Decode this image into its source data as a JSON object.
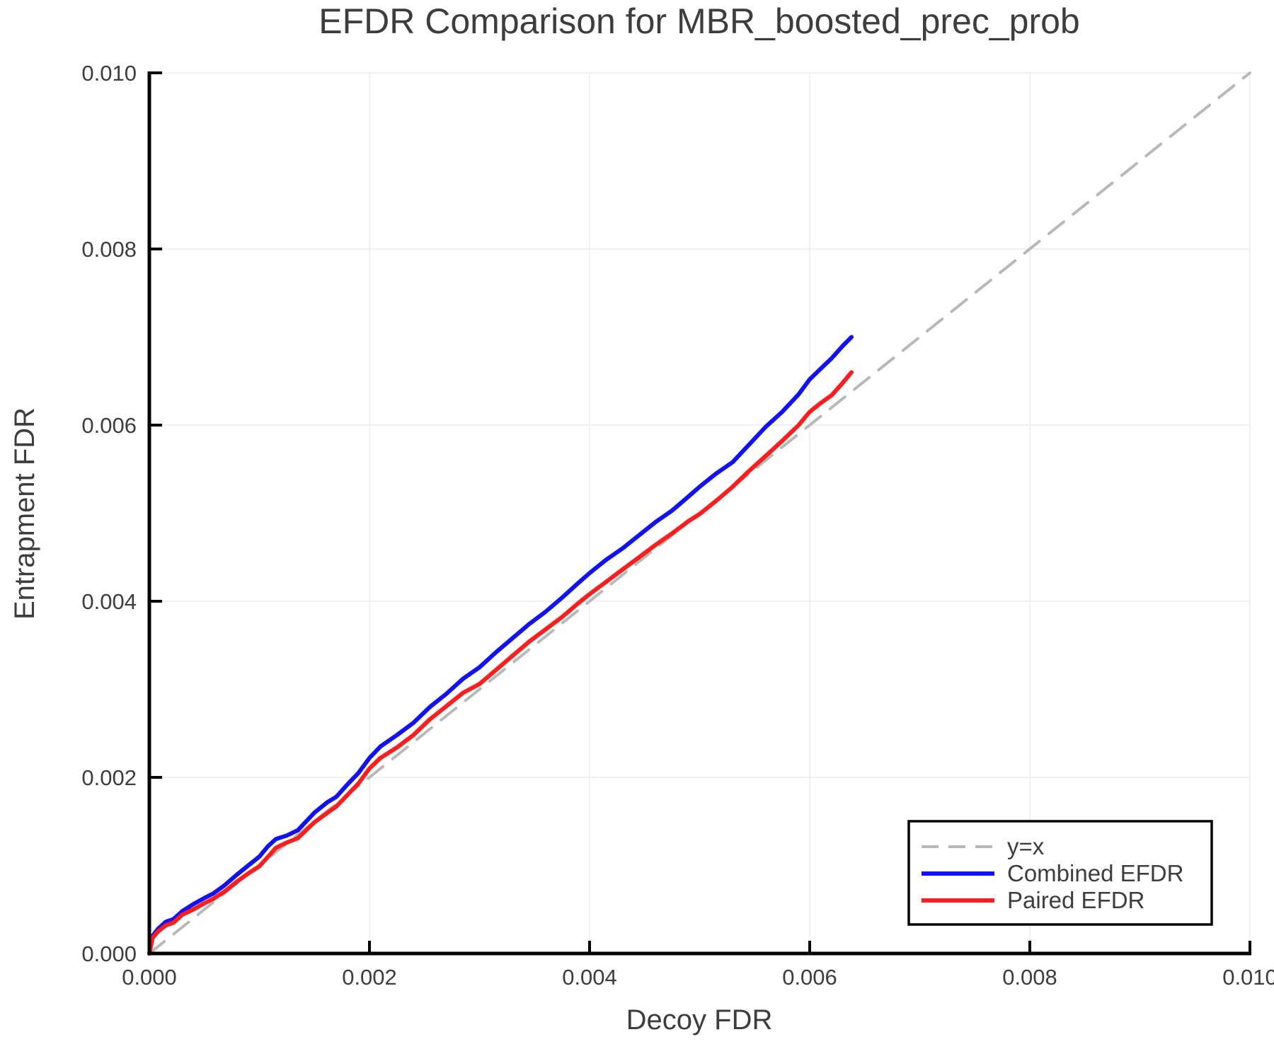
{
  "chart_data": {
    "type": "line",
    "title": "EFDR Comparison for MBR_boosted_prec_prob",
    "xlabel": "Decoy FDR",
    "ylabel": "Entrapment FDR",
    "xlim": [
      0.0,
      0.01
    ],
    "ylim": [
      0.0,
      0.01
    ],
    "grid": true,
    "legend_position": "bottom-right",
    "x_ticks": {
      "values": [
        0.0,
        0.002,
        0.004,
        0.006,
        0.008,
        0.01
      ],
      "labels": [
        "0.000",
        "0.002",
        "0.004",
        "0.006",
        "0.008",
        "0.010"
      ]
    },
    "y_ticks": {
      "values": [
        0.0,
        0.002,
        0.004,
        0.006,
        0.008,
        0.01
      ],
      "labels": [
        "0.000",
        "0.002",
        "0.004",
        "0.006",
        "0.008",
        "0.010"
      ]
    },
    "series": [
      {
        "name": "y=x",
        "style": "dashed",
        "color": "#b8b8b8",
        "points": [
          [
            0.0,
            0.0
          ],
          [
            0.01,
            0.01
          ]
        ]
      },
      {
        "name": "Combined EFDR",
        "style": "solid",
        "color": "#1212ee",
        "points": [
          [
            0.0,
            0.0
          ],
          [
            3e-05,
            0.0002
          ],
          [
            8e-05,
            0.00028
          ],
          [
            0.00015,
            0.00036
          ],
          [
            0.00022,
            0.00039
          ],
          [
            0.0003,
            0.00048
          ],
          [
            0.0004,
            0.00056
          ],
          [
            0.0005,
            0.00063
          ],
          [
            0.00058,
            0.00068
          ],
          [
            0.00068,
            0.00077
          ],
          [
            0.0008,
            0.0009
          ],
          [
            0.0009,
            0.001
          ],
          [
            0.001,
            0.0011
          ],
          [
            0.00108,
            0.00122
          ],
          [
            0.00115,
            0.0013
          ],
          [
            0.00125,
            0.00134
          ],
          [
            0.00135,
            0.0014
          ],
          [
            0.0015,
            0.0016
          ],
          [
            0.00162,
            0.00172
          ],
          [
            0.0017,
            0.00178
          ],
          [
            0.0018,
            0.00192
          ],
          [
            0.0019,
            0.00205
          ],
          [
            0.002,
            0.00222
          ],
          [
            0.0021,
            0.00235
          ],
          [
            0.00225,
            0.00248
          ],
          [
            0.0024,
            0.00262
          ],
          [
            0.00255,
            0.0028
          ],
          [
            0.0027,
            0.00295
          ],
          [
            0.00285,
            0.00312
          ],
          [
            0.003,
            0.00325
          ],
          [
            0.00315,
            0.00342
          ],
          [
            0.0033,
            0.00358
          ],
          [
            0.00345,
            0.00374
          ],
          [
            0.0036,
            0.00388
          ],
          [
            0.00375,
            0.00404
          ],
          [
            0.0039,
            0.00421
          ],
          [
            0.004,
            0.00432
          ],
          [
            0.00415,
            0.00447
          ],
          [
            0.0043,
            0.0046
          ],
          [
            0.00445,
            0.00475
          ],
          [
            0.0046,
            0.0049
          ],
          [
            0.00475,
            0.00503
          ],
          [
            0.0049,
            0.00519
          ],
          [
            0.005,
            0.0053
          ],
          [
            0.00515,
            0.00545
          ],
          [
            0.0053,
            0.00558
          ],
          [
            0.00545,
            0.00578
          ],
          [
            0.0056,
            0.00598
          ],
          [
            0.00575,
            0.00615
          ],
          [
            0.0059,
            0.00635
          ],
          [
            0.006,
            0.00652
          ],
          [
            0.0061,
            0.00664
          ],
          [
            0.0062,
            0.00676
          ],
          [
            0.0063,
            0.0069
          ],
          [
            0.00638,
            0.007
          ]
        ]
      },
      {
        "name": "Paired EFDR",
        "style": "solid",
        "color": "#fa1e1e",
        "points": [
          [
            0.0,
            0.0
          ],
          [
            3e-05,
            0.00018
          ],
          [
            8e-05,
            0.00025
          ],
          [
            0.00015,
            0.00032
          ],
          [
            0.00022,
            0.00035
          ],
          [
            0.0003,
            0.00044
          ],
          [
            0.0004,
            0.0005
          ],
          [
            0.0005,
            0.00057
          ],
          [
            0.00058,
            0.00062
          ],
          [
            0.00068,
            0.0007
          ],
          [
            0.0008,
            0.00082
          ],
          [
            0.0009,
            0.00091
          ],
          [
            0.001,
            0.00099
          ],
          [
            0.00108,
            0.0011
          ],
          [
            0.00115,
            0.0012
          ],
          [
            0.00125,
            0.00126
          ],
          [
            0.00135,
            0.00131
          ],
          [
            0.0015,
            0.00149
          ],
          [
            0.00162,
            0.0016
          ],
          [
            0.0017,
            0.00167
          ],
          [
            0.0018,
            0.0018
          ],
          [
            0.0019,
            0.00193
          ],
          [
            0.002,
            0.0021
          ],
          [
            0.0021,
            0.00222
          ],
          [
            0.00225,
            0.00234
          ],
          [
            0.0024,
            0.00248
          ],
          [
            0.00255,
            0.00266
          ],
          [
            0.0027,
            0.00281
          ],
          [
            0.00285,
            0.00296
          ],
          [
            0.003,
            0.00306
          ],
          [
            0.00315,
            0.00322
          ],
          [
            0.0033,
            0.00338
          ],
          [
            0.00345,
            0.00354
          ],
          [
            0.0036,
            0.00368
          ],
          [
            0.00375,
            0.00382
          ],
          [
            0.0039,
            0.00398
          ],
          [
            0.004,
            0.00408
          ],
          [
            0.00415,
            0.00422
          ],
          [
            0.0043,
            0.00436
          ],
          [
            0.00445,
            0.0045
          ],
          [
            0.0046,
            0.00464
          ],
          [
            0.00475,
            0.00477
          ],
          [
            0.0049,
            0.00491
          ],
          [
            0.005,
            0.00499
          ],
          [
            0.00515,
            0.00514
          ],
          [
            0.0053,
            0.0053
          ],
          [
            0.00545,
            0.00548
          ],
          [
            0.0056,
            0.00565
          ],
          [
            0.00575,
            0.00582
          ],
          [
            0.0059,
            0.006
          ],
          [
            0.006,
            0.00615
          ],
          [
            0.0061,
            0.00625
          ],
          [
            0.0062,
            0.00634
          ],
          [
            0.0063,
            0.00648
          ],
          [
            0.00638,
            0.0066
          ]
        ]
      }
    ],
    "colors": {
      "grid": "#ececec",
      "spine": "#000000",
      "text": "#3d3d3d",
      "background": "#ffffff"
    }
  }
}
